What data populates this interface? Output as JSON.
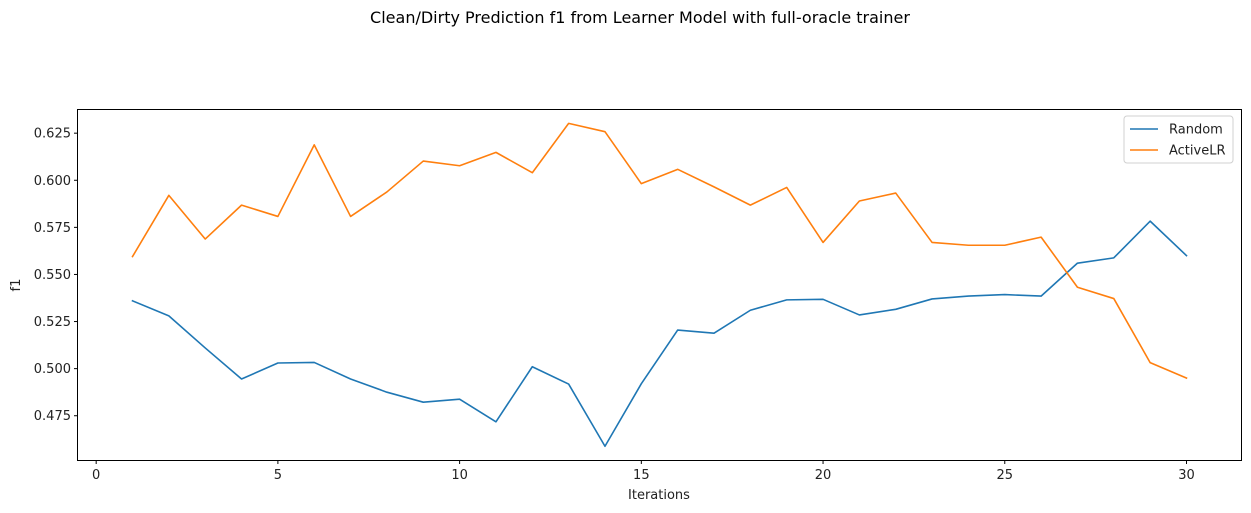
{
  "chart_data": {
    "type": "line",
    "title": "Clean/Dirty Prediction f1 from Learner Model with full-oracle trainer",
    "xlabel": "Iterations",
    "ylabel": "f1",
    "xlim": [
      -0.5,
      31.5
    ],
    "ylim": [
      0.4515,
      0.6373
    ],
    "xticks": [
      0,
      5,
      10,
      15,
      20,
      25,
      30
    ],
    "yticks": [
      0.475,
      0.5,
      0.525,
      0.55,
      0.575,
      0.6,
      0.625
    ],
    "ytick_labels": [
      "0.475",
      "0.500",
      "0.525",
      "0.550",
      "0.575",
      "0.600",
      "0.625"
    ],
    "grid": false,
    "legend_position": "top-right",
    "x": [
      1,
      2,
      3,
      4,
      5,
      6,
      7,
      8,
      9,
      10,
      11,
      12,
      13,
      14,
      15,
      16,
      17,
      18,
      19,
      20,
      21,
      22,
      23,
      24,
      25,
      26,
      27,
      28,
      29,
      30
    ],
    "series": [
      {
        "name": "Random",
        "color": "#1f77b4",
        "values": [
          0.536,
          0.528,
          0.511,
          0.4945,
          0.503,
          0.5033,
          0.4945,
          0.4875,
          0.4822,
          0.4838,
          0.4718,
          0.501,
          0.4918,
          0.4588,
          0.492,
          0.5205,
          0.5188,
          0.531,
          0.5365,
          0.5368,
          0.5285,
          0.5315,
          0.537,
          0.5385,
          0.5393,
          0.5385,
          0.556,
          0.5588,
          0.5783,
          0.56
        ]
      },
      {
        "name": "ActiveLR",
        "color": "#ff7f0e",
        "values": [
          0.5595,
          0.592,
          0.5688,
          0.5868,
          0.5808,
          0.6188,
          0.5808,
          0.5938,
          0.6102,
          0.6077,
          0.6148,
          0.604,
          0.6302,
          0.6258,
          0.5982,
          0.6058,
          0.5965,
          0.5868,
          0.5962,
          0.567,
          0.589,
          0.5932,
          0.567,
          0.5655,
          0.5655,
          0.5698,
          0.5432,
          0.5372,
          0.5032,
          0.495
        ]
      }
    ]
  }
}
